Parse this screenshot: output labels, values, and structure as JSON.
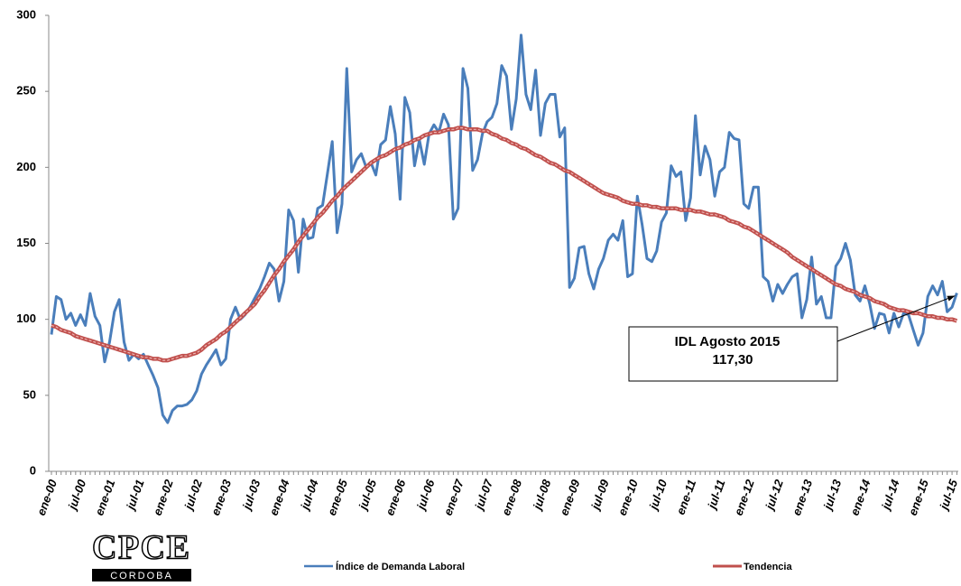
{
  "chart_data": {
    "type": "line",
    "categories": [
      "ene-00",
      null,
      null,
      null,
      null,
      null,
      "jul-00",
      null,
      null,
      null,
      null,
      null,
      "ene-01",
      null,
      null,
      null,
      null,
      null,
      "jul-01",
      null,
      null,
      null,
      null,
      null,
      "ene-02",
      null,
      null,
      null,
      null,
      null,
      "jul-02",
      null,
      null,
      null,
      null,
      null,
      "ene-03",
      null,
      null,
      null,
      null,
      null,
      "jul-03",
      null,
      null,
      null,
      null,
      null,
      "ene-04",
      null,
      null,
      null,
      null,
      null,
      "jul-04",
      null,
      null,
      null,
      null,
      null,
      "ene-05",
      null,
      null,
      null,
      null,
      null,
      "jul-05",
      null,
      null,
      null,
      null,
      null,
      "ene-06",
      null,
      null,
      null,
      null,
      null,
      "jul-06",
      null,
      null,
      null,
      null,
      null,
      "ene-07",
      null,
      null,
      null,
      null,
      null,
      "jul-07",
      null,
      null,
      null,
      null,
      null,
      "ene-08",
      null,
      null,
      null,
      null,
      null,
      "jul-08",
      null,
      null,
      null,
      null,
      null,
      "ene-09",
      null,
      null,
      null,
      null,
      null,
      "jul-09",
      null,
      null,
      null,
      null,
      null,
      "ene-10",
      null,
      null,
      null,
      null,
      null,
      "jul-10",
      null,
      null,
      null,
      null,
      null,
      "ene-11",
      null,
      null,
      null,
      null,
      null,
      "jul-11",
      null,
      null,
      null,
      null,
      null,
      "ene-12",
      null,
      null,
      null,
      null,
      null,
      "jul-12",
      null,
      null,
      null,
      null,
      null,
      "ene-13",
      null,
      null,
      null,
      null,
      null,
      "jul-13",
      null,
      null,
      null,
      null,
      null,
      "ene-14",
      null,
      null,
      null,
      null,
      null,
      "jul-14",
      null,
      null,
      null,
      null,
      null,
      "ene-15",
      null,
      null,
      null,
      null,
      null,
      "jul-15",
      null
    ],
    "series": [
      {
        "name": "Índice de Demanda Laboral",
        "color": "#4a7ebb",
        "values": [
          90,
          115,
          113,
          100,
          104,
          96,
          103,
          96,
          117,
          102,
          96,
          72,
          85,
          105,
          113,
          85,
          73,
          77,
          74,
          77,
          70,
          63,
          55,
          37,
          32,
          40,
          43,
          43,
          44,
          47,
          53,
          64,
          70,
          75,
          80,
          70,
          74,
          100,
          108,
          100,
          103,
          108,
          114,
          120,
          128,
          137,
          133,
          112,
          125,
          172,
          165,
          131,
          166,
          153,
          154,
          173,
          175,
          196,
          217,
          157,
          176,
          265,
          197,
          205,
          209,
          200,
          203,
          195,
          215,
          218,
          240,
          222,
          179,
          246,
          236,
          201,
          218,
          202,
          222,
          228,
          223,
          235,
          228,
          166,
          173,
          265,
          252,
          198,
          205,
          222,
          230,
          233,
          242,
          267,
          260,
          225,
          245,
          287,
          248,
          238,
          264,
          221,
          242,
          248,
          248,
          220,
          226,
          121,
          127,
          147,
          148,
          130,
          120,
          133,
          140,
          152,
          156,
          152,
          165,
          128,
          130,
          181,
          162,
          140,
          138,
          145,
          164,
          170,
          201,
          194,
          197,
          165,
          180,
          234,
          195,
          214,
          205,
          181,
          197,
          200,
          223,
          219,
          218,
          176,
          173,
          187,
          187,
          128,
          125,
          112,
          123,
          117,
          123,
          128,
          130,
          101,
          113,
          141,
          110,
          115,
          101,
          101,
          135,
          140,
          150,
          139,
          116,
          112,
          122,
          110,
          94,
          104,
          103,
          91,
          104,
          95,
          104,
          103,
          93,
          83,
          91,
          115,
          122,
          116,
          125,
          105,
          108,
          117.3
        ]
      },
      {
        "name": "Tendencia",
        "color": "#c0504d",
        "values": [
          96,
          95,
          93,
          92,
          91,
          89,
          88,
          87,
          86,
          85,
          84,
          83,
          82,
          81,
          80,
          79,
          78,
          77,
          76,
          75,
          75,
          74,
          74,
          73,
          73,
          74,
          75,
          76,
          76,
          77,
          78,
          80,
          83,
          85,
          87,
          90,
          92,
          95,
          98,
          101,
          104,
          107,
          110,
          115,
          119,
          124,
          129,
          133,
          138,
          142,
          146,
          151,
          155,
          159,
          163,
          167,
          170,
          174,
          178,
          181,
          185,
          188,
          191,
          194,
          197,
          200,
          203,
          205,
          207,
          208,
          210,
          212,
          213,
          215,
          216,
          218,
          219,
          221,
          222,
          223,
          223,
          224,
          225,
          225,
          226,
          226,
          225,
          225,
          225,
          224,
          224,
          222,
          221,
          219,
          218,
          216,
          215,
          213,
          212,
          210,
          208,
          207,
          205,
          203,
          202,
          200,
          198,
          197,
          195,
          193,
          191,
          189,
          187,
          185,
          183,
          182,
          181,
          180,
          178,
          177,
          176,
          176,
          175,
          175,
          174,
          174,
          173,
          173,
          173,
          173,
          172,
          172,
          172,
          171,
          171,
          170,
          169,
          169,
          168,
          167,
          165,
          164,
          163,
          161,
          160,
          158,
          156,
          154,
          152,
          150,
          148,
          146,
          144,
          141,
          139,
          137,
          135,
          133,
          131,
          129,
          127,
          125,
          123,
          122,
          120,
          119,
          118,
          116,
          115,
          114,
          112,
          111,
          110,
          108,
          107,
          106,
          106,
          105,
          104,
          104,
          103,
          102,
          102,
          101,
          101,
          100,
          100,
          99
        ]
      }
    ],
    "ylim": [
      0,
      300
    ],
    "yticks": [
      0,
      50,
      100,
      150,
      200,
      250,
      300
    ],
    "grid": false,
    "legend": "bottom",
    "annotation": {
      "lines": [
        "IDL  Agosto  2015",
        "117,30"
      ]
    }
  },
  "logo": {
    "title": "CPCE",
    "subtitle": "CORDOBA"
  }
}
